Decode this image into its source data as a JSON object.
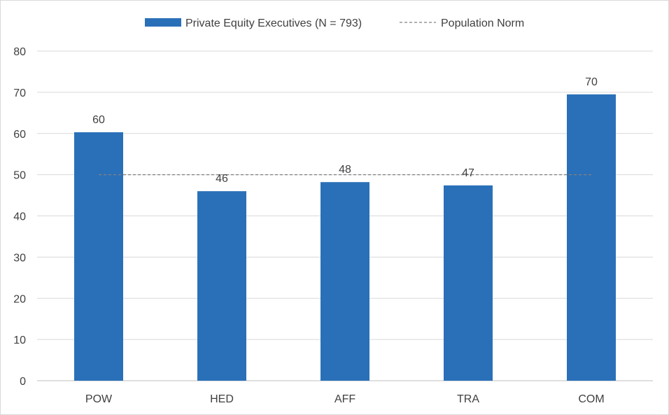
{
  "chart_data": {
    "type": "bar",
    "title": "",
    "xlabel": "",
    "ylabel": "",
    "categories": [
      "POW",
      "HED",
      "AFF",
      "TRA",
      "COM"
    ],
    "series": [
      {
        "name": "Private Equity Executives (N = 793)",
        "values": [
          60.3,
          46.0,
          48.2,
          47.4,
          69.5
        ],
        "labels": [
          "60",
          "46",
          "48",
          "47",
          "70"
        ],
        "color": "#2a70b8"
      }
    ],
    "reference_line": {
      "name": "Population Norm",
      "value": 50,
      "color": "#808080",
      "style": "dashed"
    },
    "ylim": [
      0,
      80
    ],
    "yticks": [
      0,
      10,
      20,
      30,
      40,
      50,
      60,
      70,
      80
    ],
    "ytick_labels": [
      "0",
      "10",
      "20",
      "30",
      "40",
      "50",
      "60",
      "70",
      "80"
    ],
    "grid": true,
    "legend_position": "top-center"
  }
}
